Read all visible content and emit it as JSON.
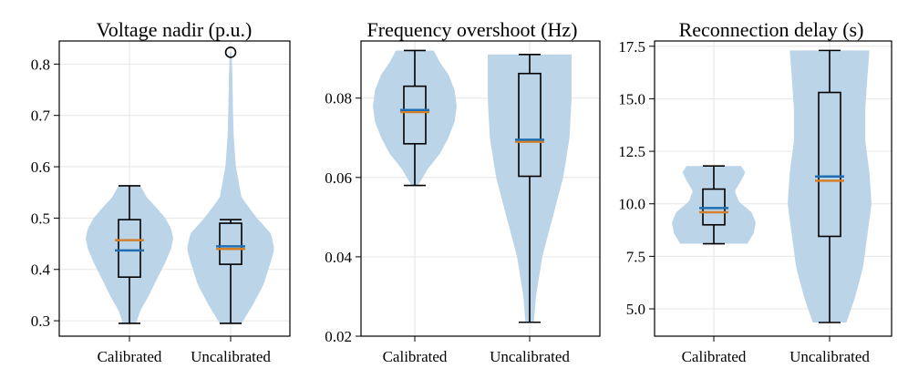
{
  "chart_data": [
    {
      "type": "violin",
      "title": "Voltage nadir (p.u.)",
      "xlabel": "",
      "ylabel": "",
      "categories": [
        "Calibrated",
        "Uncalibrated"
      ],
      "ylim": [
        0.27,
        0.845
      ],
      "yticks": [
        0.3,
        0.4,
        0.5,
        0.6,
        0.7,
        0.8
      ],
      "ytick_labels": [
        "0.3",
        "0.4",
        "0.5",
        "0.6",
        "0.7",
        "0.8"
      ],
      "grid": true,
      "distributions": [
        {
          "category": "Calibrated",
          "min": 0.295,
          "q1": 0.385,
          "median": 0.457,
          "mean": 0.437,
          "q3": 0.497,
          "max": 0.563,
          "violin_max": 0.563,
          "outliers": [],
          "density": [
            [
              0.295,
              0.15
            ],
            [
              0.32,
              0.25
            ],
            [
              0.35,
              0.45
            ],
            [
              0.38,
              0.62
            ],
            [
              0.41,
              0.8
            ],
            [
              0.44,
              0.95
            ],
            [
              0.46,
              1.0
            ],
            [
              0.48,
              0.95
            ],
            [
              0.5,
              0.82
            ],
            [
              0.52,
              0.62
            ],
            [
              0.54,
              0.4
            ],
            [
              0.563,
              0.25
            ]
          ]
        },
        {
          "category": "Uncalibrated",
          "min": 0.295,
          "q1": 0.41,
          "median": 0.44,
          "mean": 0.445,
          "q3": 0.49,
          "max": 0.497,
          "violin_max": 0.823,
          "outliers": [
            0.823
          ],
          "density": [
            [
              0.295,
              0.25
            ],
            [
              0.33,
              0.5
            ],
            [
              0.37,
              0.75
            ],
            [
              0.41,
              0.9
            ],
            [
              0.44,
              1.0
            ],
            [
              0.47,
              0.92
            ],
            [
              0.5,
              0.6
            ],
            [
              0.54,
              0.25
            ],
            [
              0.6,
              0.12
            ],
            [
              0.66,
              0.07
            ],
            [
              0.72,
              0.05
            ],
            [
              0.78,
              0.04
            ],
            [
              0.823,
              0.02
            ]
          ]
        }
      ]
    },
    {
      "type": "violin",
      "title": "Frequency overshoot (Hz)",
      "xlabel": "",
      "ylabel": "",
      "categories": [
        "Calibrated",
        "Uncalibrated"
      ],
      "ylim": [
        0.02,
        0.0944
      ],
      "yticks": [
        0.02,
        0.04,
        0.06,
        0.08
      ],
      "ytick_labels": [
        "0.02",
        "0.04",
        "0.06",
        "0.08"
      ],
      "grid": true,
      "distributions": [
        {
          "category": "Calibrated",
          "min": 0.058,
          "q1": 0.0685,
          "median": 0.0765,
          "mean": 0.077,
          "q3": 0.083,
          "max": 0.092,
          "violin_max": 0.092,
          "outliers": [],
          "density": [
            [
              0.058,
              0.08
            ],
            [
              0.062,
              0.3
            ],
            [
              0.066,
              0.6
            ],
            [
              0.07,
              0.8
            ],
            [
              0.074,
              0.95
            ],
            [
              0.078,
              1.0
            ],
            [
              0.082,
              0.95
            ],
            [
              0.086,
              0.8
            ],
            [
              0.089,
              0.6
            ],
            [
              0.092,
              0.45
            ]
          ]
        },
        {
          "category": "Uncalibrated",
          "min": 0.0235,
          "q1": 0.0603,
          "median": 0.069,
          "mean": 0.0695,
          "q3": 0.0862,
          "max": 0.091,
          "violin_max": 0.091,
          "outliers": [],
          "density": [
            [
              0.0235,
              0.1
            ],
            [
              0.03,
              0.15
            ],
            [
              0.04,
              0.3
            ],
            [
              0.05,
              0.55
            ],
            [
              0.06,
              0.8
            ],
            [
              0.07,
              0.95
            ],
            [
              0.08,
              1.0
            ],
            [
              0.087,
              1.0
            ],
            [
              0.091,
              1.0
            ]
          ]
        }
      ]
    },
    {
      "type": "violin",
      "title": "Reconnection delay (s)",
      "xlabel": "",
      "ylabel": "",
      "categories": [
        "Calibrated",
        "Uncalibrated"
      ],
      "ylim": [
        3.7,
        17.75
      ],
      "yticks": [
        5.0,
        7.5,
        10.0,
        12.5,
        15.0,
        17.5
      ],
      "ytick_labels": [
        "5.0",
        "7.5",
        "10.0",
        "12.5",
        "15.0",
        "17.5"
      ],
      "grid": true,
      "distributions": [
        {
          "category": "Calibrated",
          "min": 8.1,
          "q1": 9.0,
          "median": 9.6,
          "mean": 9.8,
          "q3": 10.7,
          "max": 11.8,
          "violin_max": 11.8,
          "outliers": [],
          "density": [
            [
              8.1,
              0.8
            ],
            [
              8.6,
              0.95
            ],
            [
              9.1,
              1.0
            ],
            [
              9.6,
              0.9
            ],
            [
              10.1,
              0.6
            ],
            [
              10.6,
              0.5
            ],
            [
              11.1,
              0.65
            ],
            [
              11.5,
              0.75
            ],
            [
              11.8,
              0.65
            ]
          ]
        },
        {
          "category": "Uncalibrated",
          "min": 4.35,
          "q1": 8.45,
          "median": 11.1,
          "mean": 11.3,
          "q3": 15.3,
          "max": 17.3,
          "violin_max": 17.3,
          "outliers": [],
          "density": [
            [
              4.35,
              0.4
            ],
            [
              5.5,
              0.6
            ],
            [
              7.0,
              0.8
            ],
            [
              8.5,
              0.9
            ],
            [
              10.0,
              1.0
            ],
            [
              11.5,
              0.95
            ],
            [
              13.0,
              0.85
            ],
            [
              14.5,
              0.85
            ],
            [
              16.0,
              0.9
            ],
            [
              17.3,
              0.95
            ]
          ]
        }
      ]
    }
  ],
  "colors": {
    "violin_fill": "#bcd4e8",
    "median": "#d47f2a",
    "mean": "#1f6fb2",
    "box": "#000000",
    "grid": "#e6e6e6",
    "axis": "#000000"
  }
}
